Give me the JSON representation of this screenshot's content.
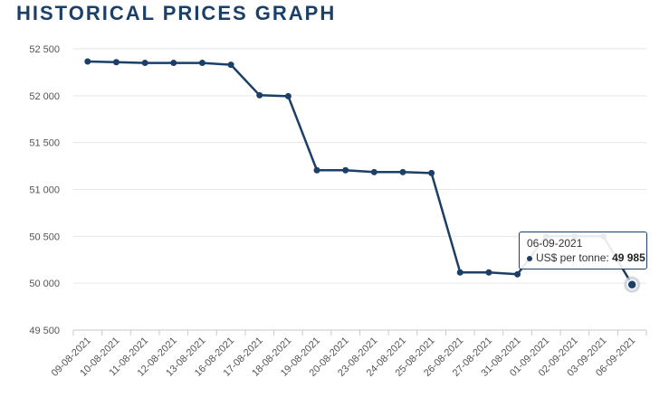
{
  "page": {
    "title": "HISTORICAL PRICES GRAPH"
  },
  "colors": {
    "series": "#1c3f68",
    "grid": "#e6e6e6",
    "title": "#1c3f68"
  },
  "tooltip": {
    "date": "06-09-2021",
    "series_label": "US$ per tonne:",
    "value": "49 985"
  },
  "chart_data": {
    "type": "line",
    "title": "HISTORICAL PRICES GRAPH",
    "xlabel": "",
    "ylabel": "",
    "ylim": [
      49500,
      52500
    ],
    "yticks": [
      49500,
      50000,
      50500,
      51000,
      51500,
      52000,
      52500
    ],
    "ytick_labels": [
      "49 500",
      "50 000",
      "50 500",
      "51 000",
      "51 500",
      "52 000",
      "52 500"
    ],
    "categories": [
      "09-08-2021",
      "10-08-2021",
      "11-08-2021",
      "12-08-2021",
      "13-08-2021",
      "16-08-2021",
      "17-08-2021",
      "18-08-2021",
      "19-08-2021",
      "20-08-2021",
      "23-08-2021",
      "24-08-2021",
      "25-08-2021",
      "26-08-2021",
      "27-08-2021",
      "31-08-2021",
      "01-09-2021",
      "02-09-2021",
      "03-09-2021",
      "06-09-2021"
    ],
    "series": [
      {
        "name": "US$ per tonne",
        "values": [
          52365,
          52358,
          52350,
          52350,
          52350,
          52330,
          52005,
          51995,
          51205,
          51205,
          51185,
          51185,
          51175,
          50115,
          50115,
          50095,
          50500,
          50500,
          50500,
          49985
        ]
      }
    ],
    "highlighted_index": 19,
    "grid": true,
    "legend": "none"
  }
}
